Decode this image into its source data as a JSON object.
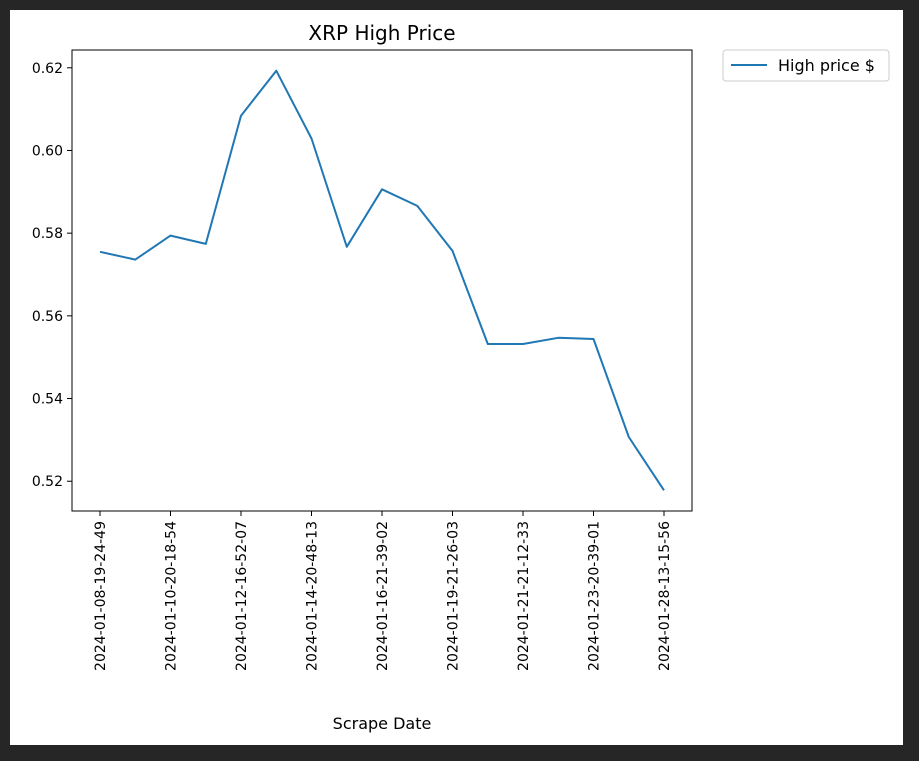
{
  "chart_data": {
    "type": "line",
    "title": "XRP High Price",
    "xlabel": "Scrape Date",
    "ylabel": "",
    "categories": [
      "2024-01-08-19-24-49",
      "",
      "2024-01-10-20-18-54",
      "",
      "2024-01-12-16-52-07",
      "",
      "2024-01-14-20-48-13",
      "",
      "2024-01-16-21-39-02",
      "",
      "2024-01-19-21-26-03",
      "",
      "2024-01-21-21-12-33",
      "",
      "2024-01-23-20-39-01",
      "",
      "2024-01-28-13-15-56"
    ],
    "tick_labels": [
      "2024-01-08-19-24-49",
      "2024-01-10-20-18-54",
      "2024-01-12-16-52-07",
      "2024-01-14-20-48-13",
      "2024-01-16-21-39-02",
      "2024-01-19-21-26-03",
      "2024-01-21-21-12-33",
      "2024-01-23-20-39-01",
      "2024-01-28-13-15-56"
    ],
    "y_ticks": [
      "0.52",
      "0.54",
      "0.56",
      "0.58",
      "0.60",
      "0.62"
    ],
    "series": [
      {
        "name": "High price $",
        "color": "#1f77b4",
        "values": [
          0.5755,
          0.5736,
          0.5794,
          0.5774,
          0.6084,
          0.6193,
          0.6029,
          0.5767,
          0.5906,
          0.5866,
          0.5757,
          0.5532,
          0.5532,
          0.5547,
          0.5544,
          0.5307,
          0.5178
        ]
      }
    ],
    "ylim": [
      0.5128,
      0.6243
    ],
    "grid": false,
    "legend": "outside-top-right"
  }
}
